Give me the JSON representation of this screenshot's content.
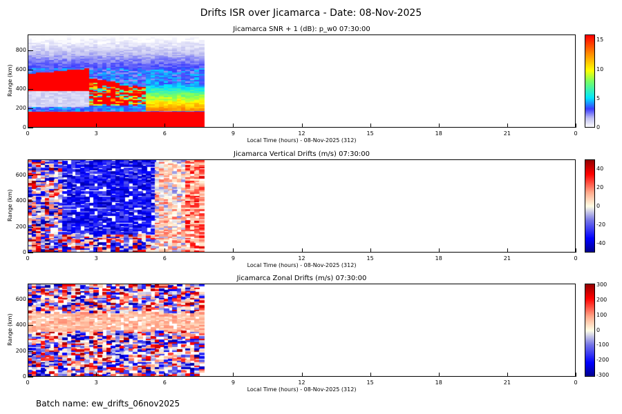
{
  "title": "Drifts ISR over Jicamarca - Date: 08-Nov-2025",
  "batch": "Batch name: ew_drifts_06nov2025",
  "chart_data": [
    {
      "type": "heatmap",
      "title": "Jicamarca SNR + 1 (dB): p_w0 07:30:00",
      "xlabel": "Local Time (hours) - 08-Nov-2025 (312)",
      "ylabel": "Range (km)",
      "xlim": [
        0,
        24
      ],
      "ylim": [
        0,
        960
      ],
      "xticks": [
        "0",
        "3",
        "6",
        "9",
        "12",
        "15",
        "18",
        "21",
        "0"
      ],
      "yticks": [
        "0",
        "200",
        "400",
        "600",
        "800"
      ],
      "data_end_hour": 7.7,
      "colorbar": {
        "range": [
          0,
          16
        ],
        "ticks": [
          "0",
          "5",
          "10",
          "15"
        ],
        "colormap": "jet"
      }
    },
    {
      "type": "heatmap",
      "title": "Jicamarca Vertical Drifts (m/s) 07:30:00",
      "xlabel": "Local Time (hours) - 08-Nov-2025 (312)",
      "ylabel": "Range (km)",
      "xlim": [
        0,
        24
      ],
      "ylim": [
        0,
        720
      ],
      "xticks": [
        "0",
        "3",
        "6",
        "9",
        "12",
        "15",
        "18",
        "21",
        "0"
      ],
      "yticks": [
        "0",
        "200",
        "400",
        "600"
      ],
      "data_end_hour": 7.7,
      "colorbar": {
        "range": [
          -50,
          50
        ],
        "ticks": [
          "-40",
          "-20",
          "0",
          "20",
          "40"
        ],
        "colormap": "blue-white-red"
      }
    },
    {
      "type": "heatmap",
      "title": "Jicamarca Zonal Drifts (m/s) 07:30:00",
      "xlabel": "Local Time (hours) - 08-Nov-2025 (312)",
      "ylabel": "Range (km)",
      "xlim": [
        0,
        24
      ],
      "ylim": [
        0,
        720
      ],
      "xticks": [
        "0",
        "3",
        "6",
        "9",
        "12",
        "15",
        "18",
        "21",
        "0"
      ],
      "yticks": [
        "0",
        "200",
        "400",
        "600"
      ],
      "data_end_hour": 7.7,
      "colorbar": {
        "range": [
          -310,
          310
        ],
        "ticks": [
          "-300",
          "-200",
          "-100",
          "0",
          "100",
          "200",
          "300"
        ],
        "colormap": "blue-white-red"
      }
    }
  ]
}
